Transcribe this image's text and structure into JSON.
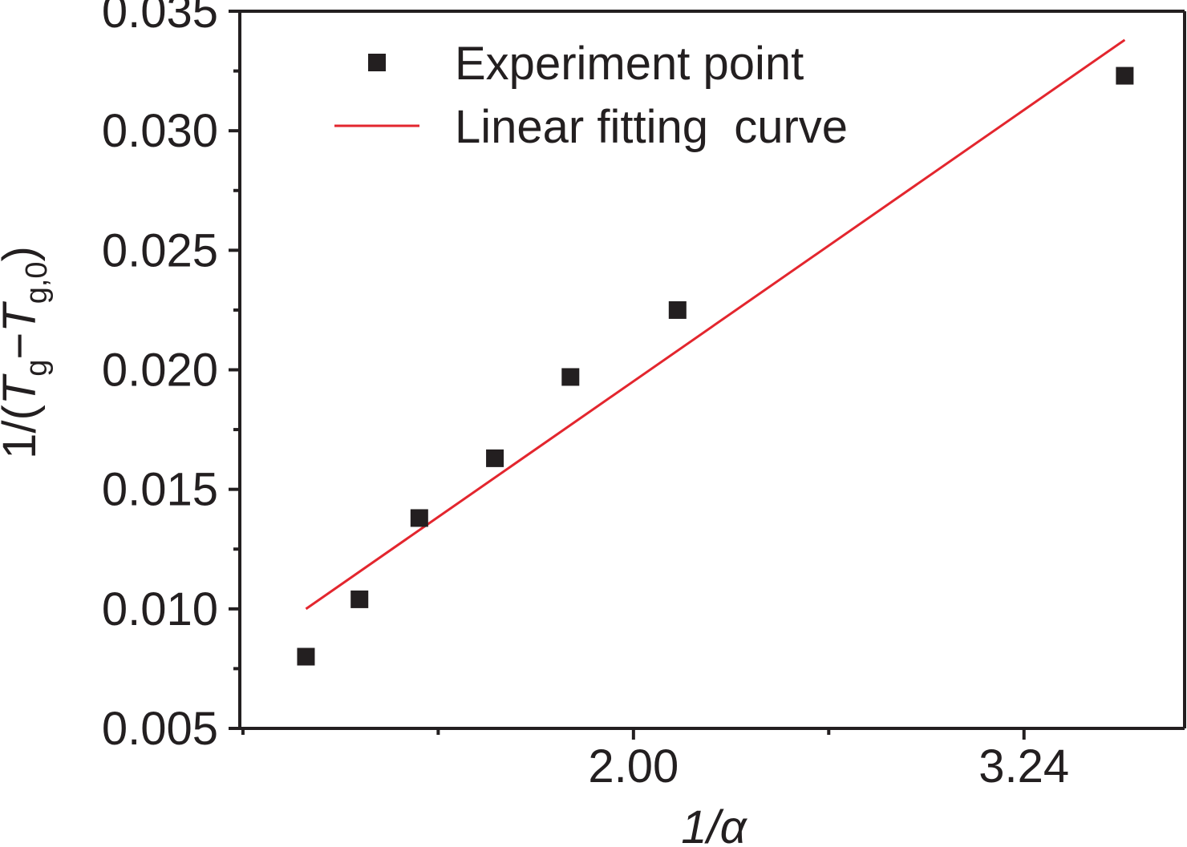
{
  "chart_data": {
    "type": "scatter",
    "title": "",
    "xlabel": "1/α",
    "ylabel": "1/(Tg−Tg,0)",
    "ylabel_parts": {
      "prefix": "1/(",
      "t1": "T",
      "sub1": "g",
      "minus": "−",
      "t2": "T",
      "sub2": "g,0",
      "suffix": ")"
    },
    "xlim": [
      0.75,
      3.75
    ],
    "ylim": [
      0.005,
      0.035
    ],
    "x_ticks": [
      2.0,
      3.24
    ],
    "x_tick_labels": [
      "2.00",
      "3.24"
    ],
    "y_ticks": [
      0.005,
      0.01,
      0.015,
      0.02,
      0.025,
      0.03,
      0.035
    ],
    "y_tick_labels": [
      "0.005",
      "0.010",
      "0.015",
      "0.020",
      "0.025",
      "0.030",
      "0.035"
    ],
    "series": [
      {
        "name": "Experiment point",
        "kind": "scatter",
        "marker": "square",
        "color": "#231f20",
        "points": [
          {
            "x": 0.96,
            "y": 0.008
          },
          {
            "x": 1.13,
            "y": 0.0104
          },
          {
            "x": 1.32,
            "y": 0.0138
          },
          {
            "x": 1.56,
            "y": 0.0163
          },
          {
            "x": 1.8,
            "y": 0.0197
          },
          {
            "x": 2.14,
            "y": 0.0225
          },
          {
            "x": 3.56,
            "y": 0.0323
          }
        ]
      },
      {
        "name": "Linear fitting  curve",
        "kind": "line",
        "color": "#e3262e",
        "points": [
          {
            "x": 0.96,
            "y": 0.01
          },
          {
            "x": 3.56,
            "y": 0.0338
          }
        ]
      }
    ],
    "legend": {
      "position": "top-left",
      "entries": [
        "Experiment point",
        "Linear fitting  curve"
      ]
    },
    "grid": false
  }
}
